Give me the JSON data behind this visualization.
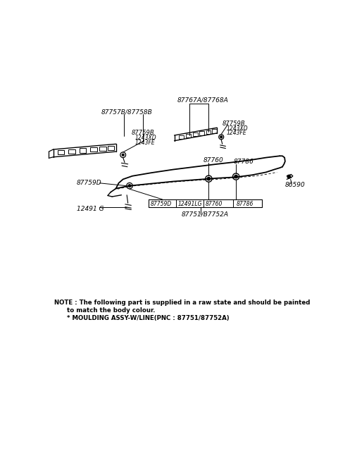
{
  "bg_color": "#ffffff",
  "line_color": "#000000",
  "text_color": "#000000",
  "fig_width": 4.8,
  "fig_height": 6.57,
  "dpi": 100,
  "note_line1": "NOTE : The following part is supplied in a raw state and should be painted",
  "note_line2": "      to match the body colour.",
  "note_line3": "      * MOULDING ASSY-W/LINE(PNC : 87751/87752A)"
}
